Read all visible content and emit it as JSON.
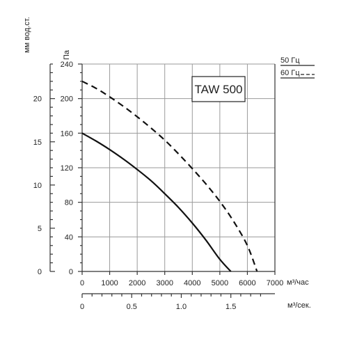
{
  "chart_data": {
    "type": "line",
    "title": "TAW 500",
    "x_primary": {
      "label": "м³/час",
      "ticks": [
        0,
        1000,
        2000,
        3000,
        4000,
        5000,
        6000,
        7000
      ],
      "range": [
        0,
        7000
      ]
    },
    "x_secondary": {
      "label": "м³/сек.",
      "ticks": [
        0,
        0.5,
        1.0,
        1.5
      ],
      "tick_labels": [
        "0",
        "0.5",
        "1.0",
        "1.5"
      ]
    },
    "y_primary": {
      "label": "Па",
      "ticks": [
        0,
        40,
        80,
        120,
        160,
        200,
        240
      ],
      "range": [
        0,
        240
      ]
    },
    "y_secondary": {
      "label": "мм вод.ст.",
      "ticks": [
        0,
        5,
        10,
        15,
        20
      ],
      "range": [
        0,
        24
      ]
    },
    "legend": [
      {
        "label": "50 Гц",
        "style": "solid"
      },
      {
        "label": "60 Гц",
        "style": "dashed"
      }
    ],
    "grid": true,
    "series": [
      {
        "name": "50 Гц",
        "style": "solid",
        "x": [
          0,
          500,
          1000,
          1500,
          2000,
          2500,
          3000,
          3500,
          4000,
          4500,
          5000,
          5400
        ],
        "y": [
          160,
          151,
          141,
          130,
          118,
          105,
          90,
          74,
          56,
          36,
          14,
          0
        ]
      },
      {
        "name": "60 Гц",
        "style": "dashed",
        "x": [
          0,
          500,
          1000,
          1500,
          2000,
          2500,
          3000,
          3500,
          4000,
          4500,
          5000,
          5500,
          6000,
          6350
        ],
        "y": [
          220,
          212,
          202,
          191,
          179,
          166,
          152,
          136,
          119,
          101,
          81,
          58,
          30,
          0
        ]
      }
    ]
  }
}
